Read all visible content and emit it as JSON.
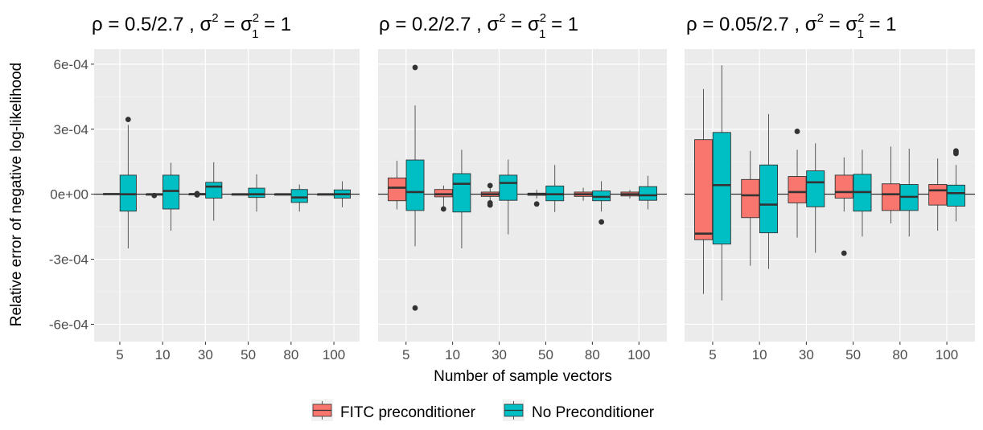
{
  "chart_data": {
    "type": "boxplot",
    "xlabel": "Number of sample vectors",
    "ylabel": "Relative error of negative log-likelihood",
    "ylim": [
      -0.00068,
      0.00067
    ],
    "yticks": [
      -0.0006,
      -0.0003,
      0,
      0.0003,
      0.0006
    ],
    "ytick_labels": [
      "-6e-04",
      "-3e-04",
      "0e+00",
      "3e-04",
      "6e-04"
    ],
    "categories": [
      "5",
      "10",
      "30",
      "50",
      "80",
      "100"
    ],
    "legend": [
      {
        "key": "fitc",
        "label": "FITC preconditioner",
        "color": "#F8766D"
      },
      {
        "key": "none",
        "label": "No Preconditioner",
        "color": "#00BFC4"
      }
    ],
    "panels": [
      {
        "title": {
          "rho": "ρ",
          "eq": " = ",
          "value": "0.5/2.7",
          "sep": " , ",
          "sigma": "σ",
          "sup": "2",
          "eq2": " = ",
          "sigma1": "σ",
          "sub1": "1",
          "sup1": "2",
          "rhs": " = 1"
        },
        "series": {
          "fitc": [
            {
              "min": -3e-06,
              "q1": -2e-06,
              "median": 1e-06,
              "q3": 3e-06,
              "max": 6e-06,
              "outliers": []
            },
            {
              "min": -3e-06,
              "q1": -2e-06,
              "median": 0.0,
              "q3": 1e-06,
              "max": 2e-06,
              "outliers": [
                -6e-06
              ]
            },
            {
              "min": -2e-06,
              "q1": -1e-06,
              "median": 1e-06,
              "q3": 2e-06,
              "max": 3e-06,
              "outliers": [
                3e-06,
                -3e-06
              ]
            },
            {
              "min": -2e-06,
              "q1": -1e-06,
              "median": 0.0,
              "q3": 1e-06,
              "max": 2e-06,
              "outliers": []
            },
            {
              "min": -2e-06,
              "q1": -1e-06,
              "median": 0.0,
              "q3": 1e-06,
              "max": 2e-06,
              "outliers": []
            },
            {
              "min": -2e-06,
              "q1": -1e-06,
              "median": 0.0,
              "q3": 1e-06,
              "max": 2e-06,
              "outliers": []
            }
          ],
          "none": [
            {
              "min": -0.00025,
              "q1": -7.8e-05,
              "median": 0.0,
              "q3": 8.8e-05,
              "max": 0.00032,
              "outliers": [
                0.000345
              ]
            },
            {
              "min": -0.000168,
              "q1": -6.8e-05,
              "median": 1.5e-05,
              "q3": 8.8e-05,
              "max": 0.000145,
              "outliers": []
            },
            {
              "min": -0.000122,
              "q1": -1.8e-05,
              "median": 3.5e-05,
              "q3": 5.5e-05,
              "max": 0.000148,
              "outliers": []
            },
            {
              "min": -8e-05,
              "q1": -1.5e-05,
              "median": 0.0,
              "q3": 2.8e-05,
              "max": 9.2e-05,
              "outliers": []
            },
            {
              "min": -8e-05,
              "q1": -3.8e-05,
              "median": -1.5e-05,
              "q3": 2.2e-05,
              "max": 4.5e-05,
              "outliers": []
            },
            {
              "min": -6e-05,
              "q1": -1.8e-05,
              "median": 0.0,
              "q3": 2e-05,
              "max": 6e-05,
              "outliers": []
            }
          ]
        }
      },
      {
        "title": {
          "rho": "ρ",
          "eq": " = ",
          "value": "0.2/2.7",
          "sep": " , ",
          "sigma": "σ",
          "sup": "2",
          "eq2": " = ",
          "sigma1": "σ",
          "sub1": "1",
          "sup1": "2",
          "rhs": " = 1"
        },
        "series": {
          "fitc": [
            {
              "min": -7e-05,
              "q1": -3e-05,
              "median": 3e-05,
              "q3": 7.5e-05,
              "max": 0.000155,
              "outliers": []
            },
            {
              "min": -6e-05,
              "q1": -1.2e-05,
              "median": 0.0,
              "q3": 2.2e-05,
              "max": 4e-05,
              "outliers": [
                -6.8e-05
              ]
            },
            {
              "min": -3e-05,
              "q1": -1e-05,
              "median": 0.0,
              "q3": 1e-05,
              "max": 3e-05,
              "outliers": [
                4e-05,
                -4e-05,
                -5e-05
              ]
            },
            {
              "min": -2e-05,
              "q1": -5e-06,
              "median": 0.0,
              "q3": 5e-06,
              "max": 2e-05,
              "outliers": [
                -4.5e-05
              ]
            },
            {
              "min": -3e-05,
              "q1": -1e-05,
              "median": 0.0,
              "q3": 1e-05,
              "max": 3e-05,
              "outliers": []
            },
            {
              "min": -2e-05,
              "q1": -8e-06,
              "median": 0.0,
              "q3": 1e-05,
              "max": 2e-05,
              "outliers": []
            }
          ],
          "none": [
            {
              "min": -0.00024,
              "q1": -7.5e-05,
              "median": 1e-05,
              "q3": 0.000158,
              "max": 0.00041,
              "outliers": [
                0.000585,
                -0.000525
              ]
            },
            {
              "min": -0.00025,
              "q1": -8.2e-05,
              "median": 4.8e-05,
              "q3": 9.5e-05,
              "max": 0.000205,
              "outliers": []
            },
            {
              "min": -0.000185,
              "q1": -2.8e-05,
              "median": 5.2e-05,
              "q3": 8.8e-05,
              "max": 0.00016,
              "outliers": []
            },
            {
              "min": -8.2e-05,
              "q1": -3e-05,
              "median": 0.0,
              "q3": 3.8e-05,
              "max": 0.000135,
              "outliers": []
            },
            {
              "min": -8e-05,
              "q1": -3e-05,
              "median": -1.2e-05,
              "q3": 1.5e-05,
              "max": 6e-05,
              "outliers": [
                -0.000128
              ]
            },
            {
              "min": -7e-05,
              "q1": -2.8e-05,
              "median": -5e-06,
              "q3": 3.5e-05,
              "max": 8.5e-05,
              "outliers": []
            }
          ]
        }
      },
      {
        "title": {
          "rho": "ρ",
          "eq": " = ",
          "value": "0.05/2.7",
          "sep": " , ",
          "sigma": "σ",
          "sup": "2",
          "eq2": " = ",
          "sigma1": "σ",
          "sub1": "1",
          "sup1": "2",
          "rhs": " = 1"
        },
        "series": {
          "fitc": [
            {
              "min": -0.00046,
              "q1": -0.00021,
              "median": -0.000182,
              "q3": 0.000252,
              "max": 0.000485,
              "outliers": []
            },
            {
              "min": -0.00033,
              "q1": -0.000108,
              "median": -5e-06,
              "q3": 6.8e-05,
              "max": 0.0002,
              "outliers": []
            },
            {
              "min": -0.0002,
              "q1": -4e-05,
              "median": 1e-05,
              "q3": 8.2e-05,
              "max": 0.000205,
              "outliers": [
                0.00029
              ]
            },
            {
              "min": -8e-05,
              "q1": -1.8e-05,
              "median": 1e-05,
              "q3": 8.8e-05,
              "max": 0.00017,
              "outliers": [
                -0.000272
              ]
            },
            {
              "min": -0.000135,
              "q1": -7.5e-05,
              "median": 0.0,
              "q3": 4.8e-05,
              "max": 0.00022,
              "outliers": []
            },
            {
              "min": -0.000168,
              "q1": -5e-05,
              "median": 1.8e-05,
              "q3": 4.5e-05,
              "max": 0.000165,
              "outliers": []
            }
          ],
          "none": [
            {
              "min": -0.00049,
              "q1": -0.00023,
              "median": 4.2e-05,
              "q3": 0.000285,
              "max": 0.000595,
              "outliers": []
            },
            {
              "min": -0.000345,
              "q1": -0.000178,
              "median": -4.8e-05,
              "q3": 0.000135,
              "max": 0.00037,
              "outliers": []
            },
            {
              "min": -0.00027,
              "q1": -5.8e-05,
              "median": 5.5e-05,
              "q3": 0.000108,
              "max": 0.000235,
              "outliers": []
            },
            {
              "min": -0.000195,
              "q1": -7.8e-05,
              "median": 1e-05,
              "q3": 9.2e-05,
              "max": 0.000205,
              "outliers": []
            },
            {
              "min": -0.000195,
              "q1": -7.5e-05,
              "median": -1.2e-05,
              "q3": 4.5e-05,
              "max": 0.00021,
              "outliers": []
            },
            {
              "min": -0.000125,
              "q1": -5.5e-05,
              "median": 5e-06,
              "q3": 4.2e-05,
              "max": 0.000135,
              "outliers": [
                0.0002,
                0.000195,
                0.000188
              ]
            }
          ]
        }
      }
    ]
  }
}
